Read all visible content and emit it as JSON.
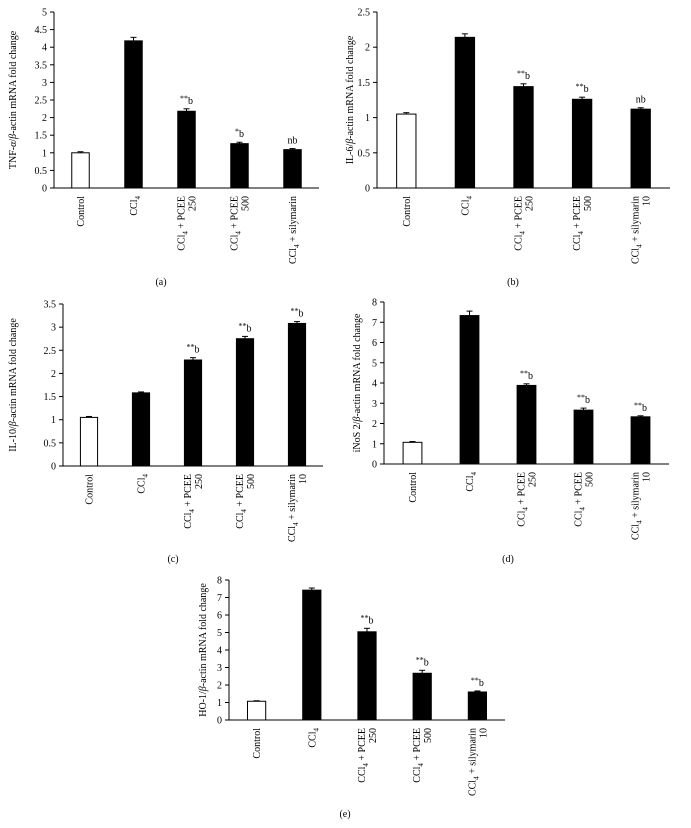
{
  "chart_data": [
    {
      "type": "bar",
      "panel_label": "(a)",
      "ylabel_parts": [
        "TNF-",
        "α",
        "/",
        "β",
        "-actin mRNA fold change"
      ],
      "ylim": [
        0,
        5
      ],
      "yticks": [
        "0",
        "0.5",
        "1",
        "1.5",
        "2",
        "2.5",
        "3",
        "3.5",
        "4",
        "4.5",
        "5"
      ],
      "categories": [
        {
          "lines": [
            {
              "a": "Control"
            }
          ]
        },
        {
          "lines": [
            {
              "a": "CCl",
              "sub": "4"
            }
          ]
        },
        {
          "lines": [
            {
              "a": "CCl",
              "sub": "4",
              "b": " + PCEE"
            },
            {
              "a": "250"
            }
          ]
        },
        {
          "lines": [
            {
              "a": "CCl",
              "sub": "4",
              "b": " + PCEE"
            },
            {
              "a": "500"
            }
          ]
        },
        {
          "lines": [
            {
              "a": "CCl",
              "sub": "4",
              "b": " + silymarin"
            }
          ]
        }
      ],
      "values": [
        1.0,
        4.18,
        2.18,
        1.26,
        1.09
      ],
      "errors": [
        0.03,
        0.1,
        0.07,
        0.04,
        0.03
      ],
      "fills": [
        "#ffffff",
        "#000000",
        "#000000",
        "#000000",
        "#000000"
      ],
      "annotations": [
        {
          "stars": "",
          "text": ""
        },
        {
          "stars": "",
          "text": ""
        },
        {
          "stars": "**",
          "text": "b"
        },
        {
          "stars": "*",
          "text": "b"
        },
        {
          "stars": "",
          "text": "nb"
        }
      ]
    },
    {
      "type": "bar",
      "panel_label": "(b)",
      "ylabel_parts": [
        "IL-6/",
        "β",
        "-actin mRNA fold change"
      ],
      "ylim": [
        0,
        2.5
      ],
      "yticks": [
        "0",
        "0.5",
        "1",
        "1.5",
        "2",
        "2.5"
      ],
      "categories": [
        {
          "lines": [
            {
              "a": "Control"
            }
          ]
        },
        {
          "lines": [
            {
              "a": "CCl",
              "sub": "4"
            }
          ]
        },
        {
          "lines": [
            {
              "a": "CCl",
              "sub": "4",
              "b": " + PCEE"
            },
            {
              "a": "250"
            }
          ]
        },
        {
          "lines": [
            {
              "a": "CCl",
              "sub": "4",
              "b": " + PCEE"
            },
            {
              "a": "500"
            }
          ]
        },
        {
          "lines": [
            {
              "a": "CCl",
              "sub": "4",
              "b": " + silymarin"
            },
            {
              "a": "10"
            }
          ]
        }
      ],
      "values": [
        1.05,
        2.14,
        1.44,
        1.26,
        1.12
      ],
      "errors": [
        0.02,
        0.05,
        0.04,
        0.03,
        0.02
      ],
      "fills": [
        "#ffffff",
        "#000000",
        "#000000",
        "#000000",
        "#000000"
      ],
      "annotations": [
        {
          "stars": "",
          "text": ""
        },
        {
          "stars": "",
          "text": ""
        },
        {
          "stars": "**",
          "text": "b"
        },
        {
          "stars": "**",
          "text": "b"
        },
        {
          "stars": "",
          "text": "nb"
        }
      ]
    },
    {
      "type": "bar",
      "panel_label": "(c)",
      "ylabel_parts": [
        "IL-10/",
        "β",
        "-actin mRNA fold change"
      ],
      "ylim": [
        0,
        3.5
      ],
      "yticks": [
        "0",
        "0.5",
        "1",
        "1.5",
        "2",
        "2.5",
        "3",
        "3.5"
      ],
      "categories": [
        {
          "lines": [
            {
              "a": "Control"
            }
          ]
        },
        {
          "lines": [
            {
              "a": "CCl",
              "sub": "4"
            }
          ]
        },
        {
          "lines": [
            {
              "a": "CCl",
              "sub": "4",
              "b": " + PCEE"
            },
            {
              "a": "250"
            }
          ]
        },
        {
          "lines": [
            {
              "a": "CCl",
              "sub": "4",
              "b": " + PCEE"
            },
            {
              "a": "500"
            }
          ]
        },
        {
          "lines": [
            {
              "a": "CCl",
              "sub": "4",
              "b": " + silymarin"
            },
            {
              "a": "10"
            }
          ]
        }
      ],
      "values": [
        1.05,
        1.58,
        2.29,
        2.75,
        3.08
      ],
      "errors": [
        0.02,
        0.02,
        0.05,
        0.05,
        0.04
      ],
      "fills": [
        "#ffffff",
        "#000000",
        "#000000",
        "#000000",
        "#000000"
      ],
      "annotations": [
        {
          "stars": "",
          "text": ""
        },
        {
          "stars": "",
          "text": ""
        },
        {
          "stars": "**",
          "text": "b"
        },
        {
          "stars": "**",
          "text": "b"
        },
        {
          "stars": "**",
          "text": "b"
        }
      ]
    },
    {
      "type": "bar",
      "panel_label": "(d)",
      "ylabel_parts": [
        "iNoS 2/",
        "β",
        "-actin mRNA fold change"
      ],
      "ylim": [
        0,
        8
      ],
      "yticks": [
        "0",
        "1",
        "2",
        "3",
        "4",
        "5",
        "6",
        "7",
        "8"
      ],
      "categories": [
        {
          "lines": [
            {
              "a": "Control"
            }
          ]
        },
        {
          "lines": [
            {
              "a": "CCl",
              "sub": "4"
            }
          ]
        },
        {
          "lines": [
            {
              "a": "CCl",
              "sub": "4",
              "b": " + PCEE"
            },
            {
              "a": "250"
            }
          ]
        },
        {
          "lines": [
            {
              "a": "CCl",
              "sub": "4",
              "b": " + PCEE"
            },
            {
              "a": "500"
            }
          ]
        },
        {
          "lines": [
            {
              "a": "CCl",
              "sub": "4",
              "b": " + silymarin"
            },
            {
              "a": "10"
            }
          ]
        }
      ],
      "values": [
        1.07,
        7.33,
        3.88,
        2.66,
        2.33
      ],
      "errors": [
        0.04,
        0.22,
        0.08,
        0.1,
        0.05
      ],
      "fills": [
        "#ffffff",
        "#000000",
        "#000000",
        "#000000",
        "#000000"
      ],
      "annotations": [
        {
          "stars": "",
          "text": ""
        },
        {
          "stars": "",
          "text": ""
        },
        {
          "stars": "**",
          "text": "b"
        },
        {
          "stars": "**",
          "text": "b"
        },
        {
          "stars": "**",
          "text": "b"
        }
      ]
    },
    {
      "type": "bar",
      "panel_label": "(e)",
      "ylabel_parts": [
        "HO-1/",
        "β",
        "-actin mRNA fold change"
      ],
      "ylim": [
        0,
        8
      ],
      "yticks": [
        "0",
        "1",
        "2",
        "3",
        "4",
        "5",
        "6",
        "7",
        "8"
      ],
      "categories": [
        {
          "lines": [
            {
              "a": "Control"
            }
          ]
        },
        {
          "lines": [
            {
              "a": "CCl",
              "sub": "4"
            }
          ]
        },
        {
          "lines": [
            {
              "a": "CCl",
              "sub": "4",
              "b": " + PCEE"
            },
            {
              "a": "250"
            }
          ]
        },
        {
          "lines": [
            {
              "a": "CCl",
              "sub": "4",
              "b": " + PCEE"
            },
            {
              "a": "500"
            }
          ]
        },
        {
          "lines": [
            {
              "a": "CCl",
              "sub": "4",
              "b": " + silymarin"
            },
            {
              "a": "10"
            }
          ]
        }
      ],
      "values": [
        1.07,
        7.42,
        5.04,
        2.67,
        1.6
      ],
      "errors": [
        0.03,
        0.12,
        0.2,
        0.17,
        0.06
      ],
      "fills": [
        "#ffffff",
        "#000000",
        "#000000",
        "#000000",
        "#000000"
      ],
      "annotations": [
        {
          "stars": "",
          "text": ""
        },
        {
          "stars": "",
          "text": ""
        },
        {
          "stars": "**",
          "text": "b"
        },
        {
          "stars": "**",
          "text": "b"
        },
        {
          "stars": "**",
          "text": "b"
        }
      ]
    }
  ]
}
